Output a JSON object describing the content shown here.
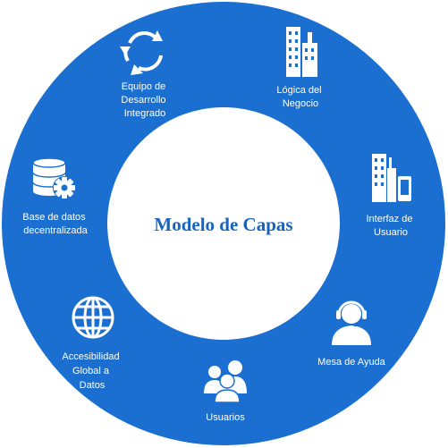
{
  "center": {
    "title": "Modelo de Capas"
  },
  "colors": {
    "ring": "#1a6fd1",
    "center_fill": "#ffffff",
    "title": "#1565c0",
    "icon": "#ffffff"
  },
  "segments": [
    {
      "icon": "cycle-arrows-icon",
      "lines": [
        "Equipo de",
        "Desarrollo",
        "Integrado"
      ]
    },
    {
      "icon": "office-buildings-icon",
      "lines": [
        "Lógica del",
        "Negocio"
      ]
    },
    {
      "icon": "building-device-icon",
      "lines": [
        "Interfaz de",
        "Usuario"
      ]
    },
    {
      "icon": "headset-agent-icon",
      "lines": [
        "Mesa de Ayuda"
      ]
    },
    {
      "icon": "users-group-icon",
      "lines": [
        "Usuarios"
      ]
    },
    {
      "icon": "globe-icon",
      "lines": [
        "Accesibilidad",
        "Global a",
        "Datos"
      ]
    },
    {
      "icon": "database-gear-icon",
      "lines": [
        "Base de datos",
        "decentralizada"
      ]
    }
  ]
}
